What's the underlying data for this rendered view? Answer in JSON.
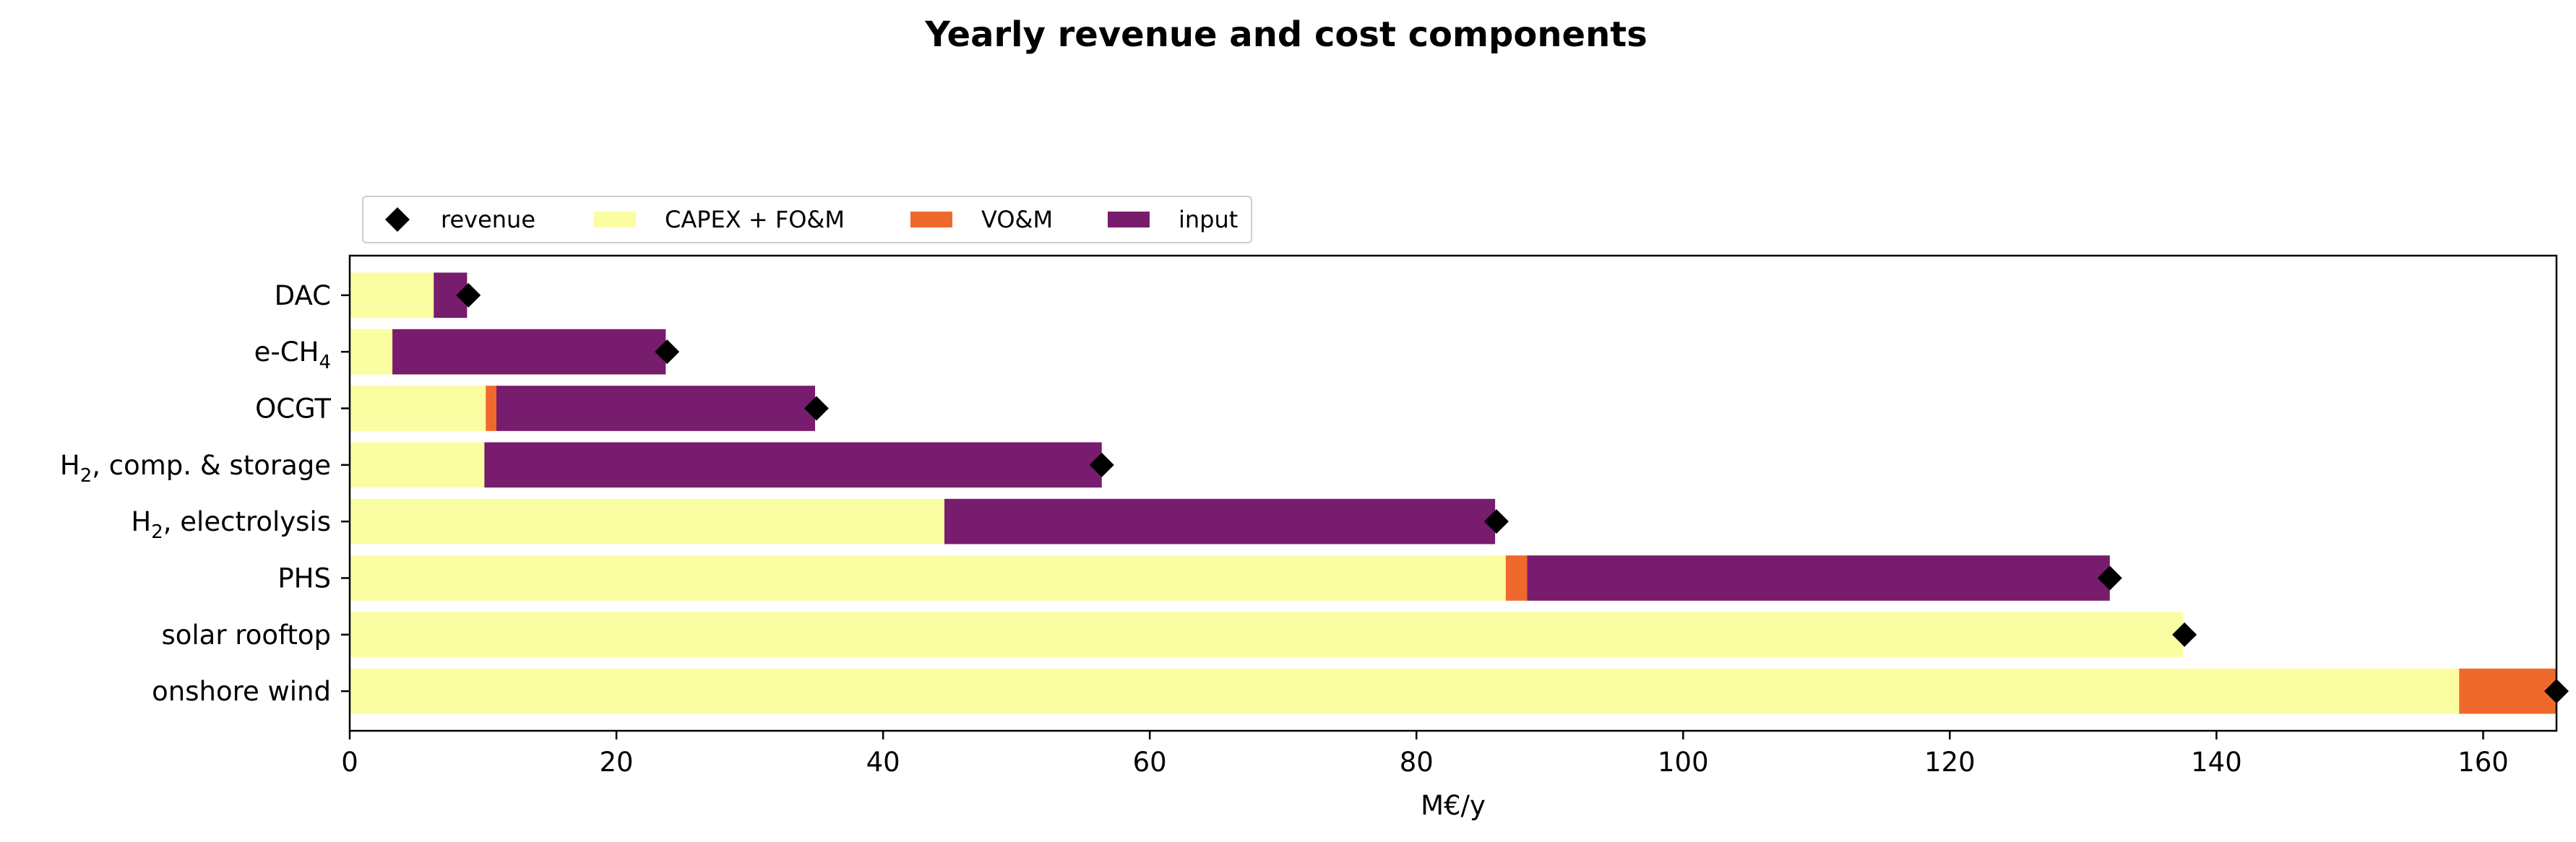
{
  "chart_data": {
    "type": "bar",
    "orientation": "horizontal",
    "stacked": true,
    "title": "Yearly revenue and cost components",
    "xlabel": "M€/y",
    "ylabel": "",
    "xlim": [
      0,
      165.5
    ],
    "xticks": [
      0,
      20,
      40,
      60,
      80,
      100,
      120,
      140,
      160
    ],
    "legend_placement": "top-left, above plot",
    "grid": false,
    "categories": [
      {
        "text": "DAC",
        "sub": "",
        "rest": ""
      },
      {
        "text": "e-CH",
        "sub": "4",
        "rest": ""
      },
      {
        "text": "OCGT",
        "sub": "",
        "rest": ""
      },
      {
        "text": "H",
        "sub": "2",
        "rest": ", comp. & storage"
      },
      {
        "text": "H",
        "sub": "2",
        "rest": ", electrolysis"
      },
      {
        "text": "PHS",
        "sub": "",
        "rest": ""
      },
      {
        "text": "solar rooftop",
        "sub": "",
        "rest": ""
      },
      {
        "text": "onshore wind",
        "sub": "",
        "rest": ""
      }
    ],
    "series": [
      {
        "name": "CAPEX + FO&M",
        "color": "#fbfda2",
        "values": [
          6.3,
          3.2,
          10.2,
          10.1,
          44.6,
          86.7,
          137.5,
          158.2
        ]
      },
      {
        "name": "VO&M",
        "color": "#f0692c",
        "values": [
          0.0,
          0.0,
          0.8,
          0.0,
          0.0,
          1.6,
          0.0,
          7.3
        ]
      },
      {
        "name": "input",
        "color": "#781c6d",
        "values": [
          2.5,
          20.5,
          23.9,
          46.3,
          41.3,
          43.7,
          0.0,
          0.0
        ]
      }
    ],
    "revenue": {
      "name": "revenue",
      "color": "#000000",
      "values": [
        8.9,
        23.8,
        35.0,
        56.4,
        86.0,
        132.0,
        137.6,
        165.5
      ]
    }
  }
}
